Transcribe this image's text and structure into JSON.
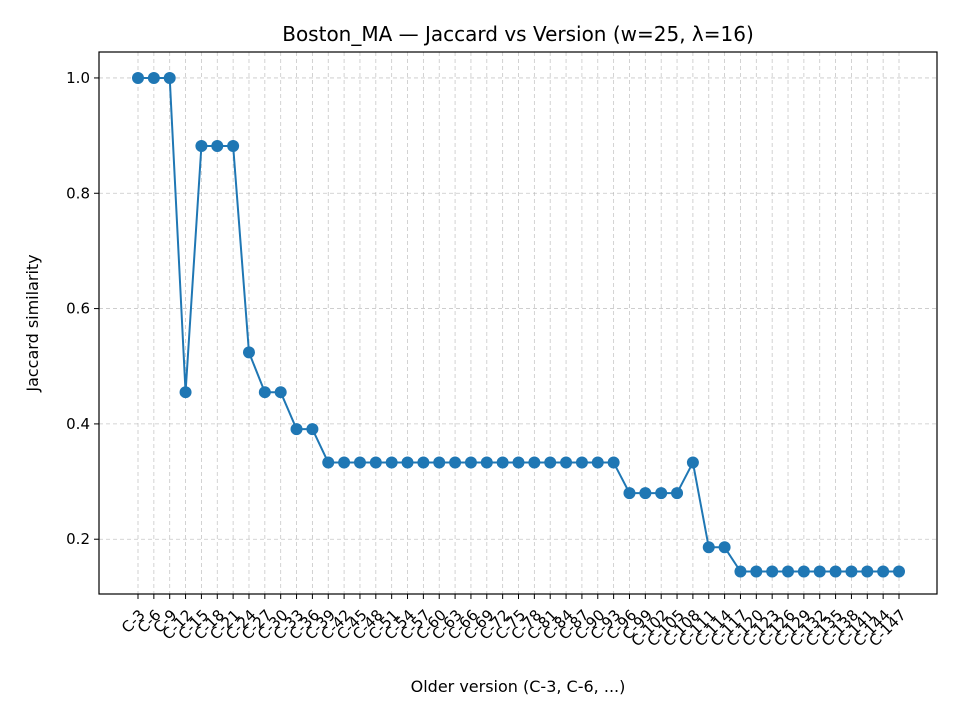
{
  "chart_data": {
    "type": "line",
    "title": "Boston_MA — Jaccard vs Version (w=25, λ=16)",
    "xlabel": "Older version (C-3, C-6, ...)",
    "ylabel": "Jaccard similarity",
    "ylim": [
      0.105,
      1.045
    ],
    "yticks": [
      "0.2",
      "0.4",
      "0.6",
      "0.8",
      "1.0"
    ],
    "grid": true,
    "line_color": "#1f77b4",
    "categories": [
      "C-3",
      "C-6",
      "C-9",
      "C-12",
      "C-15",
      "C-18",
      "C-21",
      "C-24",
      "C-27",
      "C-30",
      "C-33",
      "C-36",
      "C-39",
      "C-42",
      "C-45",
      "C-48",
      "C-51",
      "C-54",
      "C-57",
      "C-60",
      "C-63",
      "C-66",
      "C-69",
      "C-72",
      "C-75",
      "C-78",
      "C-81",
      "C-84",
      "C-87",
      "C-90",
      "C-93",
      "C-96",
      "C-99",
      "C-102",
      "C-105",
      "C-108",
      "C-111",
      "C-114",
      "C-117",
      "C-120",
      "C-123",
      "C-126",
      "C-129",
      "C-132",
      "C-135",
      "C-138",
      "C-141",
      "C-144",
      "C-147"
    ],
    "series": [
      {
        "values": [
          1.0,
          1.0,
          1.0,
          0.455,
          0.882,
          0.882,
          0.882,
          0.524,
          0.455,
          0.455,
          0.391,
          0.391,
          0.333,
          0.333,
          0.333,
          0.333,
          0.333,
          0.333,
          0.333,
          0.333,
          0.333,
          0.333,
          0.333,
          0.333,
          0.333,
          0.333,
          0.333,
          0.333,
          0.333,
          0.333,
          0.333,
          0.28,
          0.28,
          0.28,
          0.28,
          0.333,
          0.186,
          0.186,
          0.144,
          0.144,
          0.144,
          0.144,
          0.144,
          0.144,
          0.144,
          0.144,
          0.144,
          0.144,
          0.144
        ]
      }
    ]
  }
}
